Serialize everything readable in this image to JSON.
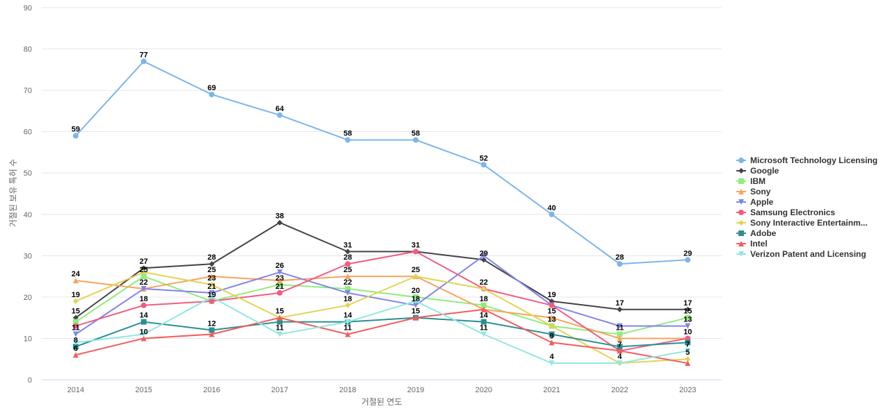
{
  "chart_data": {
    "type": "line",
    "title": "",
    "xlabel": "거절된 연도",
    "ylabel": "거절된 보유 특허 수",
    "ylim": [
      0,
      90
    ],
    "yticks": [
      0,
      10,
      20,
      30,
      40,
      50,
      60,
      70,
      80,
      90
    ],
    "grid": true,
    "legend_position": "right",
    "categories": [
      "2014",
      "2015",
      "2016",
      "2017",
      "2018",
      "2019",
      "2020",
      "2021",
      "2022",
      "2023"
    ],
    "series": [
      {
        "name": "Microsoft Technology Licensing",
        "color": "#7cb5ec",
        "marker": "circle",
        "values": [
          59,
          77,
          69,
          64,
          58,
          58,
          52,
          40,
          28,
          29
        ]
      },
      {
        "name": "Google",
        "color": "#434348",
        "marker": "diamond",
        "values": [
          15,
          27,
          28,
          38,
          31,
          31,
          29,
          19,
          17,
          17
        ]
      },
      {
        "name": "IBM",
        "color": "#90ed7d",
        "marker": "square",
        "values": [
          14,
          25,
          19,
          23,
          22,
          20,
          18,
          13,
          11,
          15
        ]
      },
      {
        "name": "Sony",
        "color": "#f7a35c",
        "marker": "triangle",
        "values": [
          24,
          22,
          25,
          24,
          25,
          25,
          17,
          15,
          10,
          10
        ]
      },
      {
        "name": "Apple",
        "color": "#8085e9",
        "marker": "triangle-down",
        "values": [
          11,
          22,
          21,
          26,
          21,
          18,
          30,
          18,
          13,
          13
        ]
      },
      {
        "name": "Samsung Electronics",
        "color": "#f15c80",
        "marker": "circle",
        "values": [
          13,
          18,
          19,
          21,
          28,
          31,
          22,
          18,
          7,
          10
        ]
      },
      {
        "name": "Sony Interactive Entertainm...",
        "color": "#e4d354",
        "marker": "diamond",
        "values": [
          19,
          26,
          23,
          15,
          18,
          25,
          22,
          13,
          4,
          5
        ]
      },
      {
        "name": "Adobe",
        "color": "#2b908f",
        "marker": "square",
        "values": [
          8,
          14,
          12,
          14,
          14,
          15,
          14,
          11,
          8,
          9
        ]
      },
      {
        "name": "Intel",
        "color": "#f45b5b",
        "marker": "triangle",
        "values": [
          6,
          10,
          11,
          15,
          11,
          15,
          17,
          9,
          7,
          4
        ]
      },
      {
        "name": "Verizon Patent and Licensing",
        "color": "#91e8e1",
        "marker": "triangle-down",
        "values": [
          9,
          11,
          20,
          11,
          14,
          19,
          11,
          4,
          4,
          7
        ]
      }
    ],
    "data_labels": [
      {
        "x": "2014",
        "v": "59"
      },
      {
        "x": "2014",
        "v": "24"
      },
      {
        "x": "2014",
        "v": "19"
      },
      {
        "x": "2014",
        "v": "15"
      },
      {
        "x": "2014",
        "v": "11"
      },
      {
        "x": "2014",
        "v": "8"
      },
      {
        "x": "2014",
        "v": "6"
      },
      {
        "x": "2015",
        "v": "77"
      },
      {
        "x": "2015",
        "v": "27"
      },
      {
        "x": "2015",
        "v": "25"
      },
      {
        "x": "2015",
        "v": "22"
      },
      {
        "x": "2015",
        "v": "18"
      },
      {
        "x": "2015",
        "v": "14"
      },
      {
        "x": "2015",
        "v": "10"
      },
      {
        "x": "2016",
        "v": "69"
      },
      {
        "x": "2016",
        "v": "28"
      },
      {
        "x": "2016",
        "v": "25"
      },
      {
        "x": "2016",
        "v": "23"
      },
      {
        "x": "2016",
        "v": "21"
      },
      {
        "x": "2016",
        "v": "19"
      },
      {
        "x": "2016",
        "v": "12"
      },
      {
        "x": "2017",
        "v": "64"
      },
      {
        "x": "2017",
        "v": "38"
      },
      {
        "x": "2017",
        "v": "26"
      },
      {
        "x": "2017",
        "v": "23"
      },
      {
        "x": "2017",
        "v": "21"
      },
      {
        "x": "2017",
        "v": "15"
      },
      {
        "x": "2017",
        "v": "11"
      },
      {
        "x": "2018",
        "v": "58"
      },
      {
        "x": "2018",
        "v": "31"
      },
      {
        "x": "2018",
        "v": "28"
      },
      {
        "x": "2018",
        "v": "25"
      },
      {
        "x": "2018",
        "v": "22"
      },
      {
        "x": "2018",
        "v": "18"
      },
      {
        "x": "2018",
        "v": "14"
      },
      {
        "x": "2018",
        "v": "11"
      },
      {
        "x": "2019",
        "v": "58"
      },
      {
        "x": "2019",
        "v": "31"
      },
      {
        "x": "2019",
        "v": "25"
      },
      {
        "x": "2019",
        "v": "20"
      },
      {
        "x": "2019",
        "v": "18"
      },
      {
        "x": "2019",
        "v": "15"
      },
      {
        "x": "2020",
        "v": "52"
      },
      {
        "x": "2020",
        "v": "29"
      },
      {
        "x": "2020",
        "v": "22"
      },
      {
        "x": "2020",
        "v": "18"
      },
      {
        "x": "2020",
        "v": "14"
      },
      {
        "x": "2020",
        "v": "11"
      },
      {
        "x": "2021",
        "v": "40"
      },
      {
        "x": "2021",
        "v": "19"
      },
      {
        "x": "2021",
        "v": "15"
      },
      {
        "x": "2021",
        "v": "13"
      },
      {
        "x": "2021",
        "v": "9"
      },
      {
        "x": "2021",
        "v": "4"
      },
      {
        "x": "2022",
        "v": "28"
      },
      {
        "x": "2022",
        "v": "17"
      },
      {
        "x": "2022",
        "v": "11"
      },
      {
        "x": "2022",
        "v": "7"
      },
      {
        "x": "2022",
        "v": "4"
      },
      {
        "x": "2023",
        "v": "29"
      },
      {
        "x": "2023",
        "v": "17"
      },
      {
        "x": "2023",
        "v": "15"
      },
      {
        "x": "2023",
        "v": "13"
      },
      {
        "x": "2023",
        "v": "10"
      },
      {
        "x": "2023",
        "v": "7"
      },
      {
        "x": "2023",
        "v": "5"
      }
    ]
  }
}
